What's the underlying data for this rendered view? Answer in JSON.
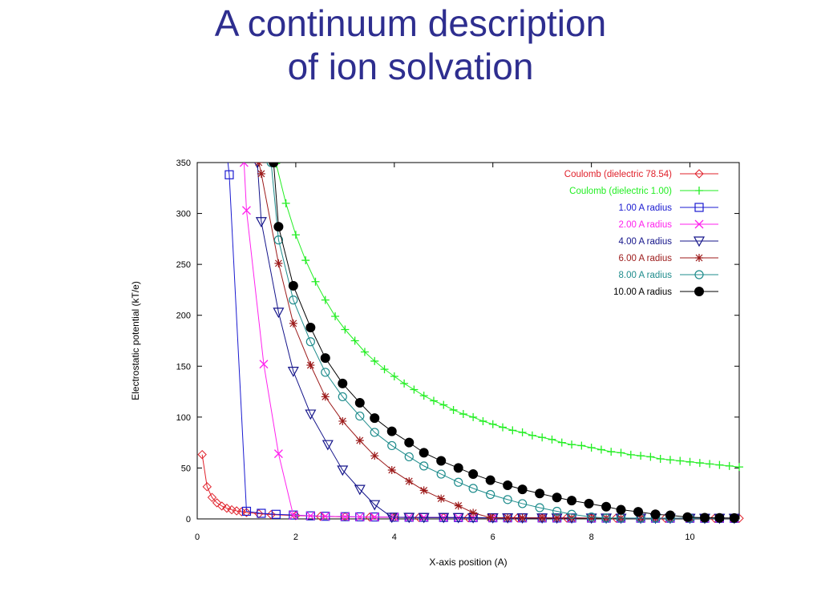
{
  "title": {
    "line1": "A continuum description",
    "line2": "of ion solvation"
  },
  "chart_data": {
    "type": "line",
    "xlabel": "X-axis position (A)",
    "ylabel": "Electrostatic potential (kT/e)",
    "xlim": [
      0,
      11
    ],
    "ylim": [
      0,
      350
    ],
    "xticks": [
      0,
      2,
      4,
      6,
      8,
      10
    ],
    "yticks": [
      0,
      50,
      100,
      150,
      200,
      250,
      300,
      350
    ],
    "legend_position": "top-right",
    "series": [
      {
        "name": "Coulomb (dielectric 78.54)",
        "color": "#e0202a",
        "marker": "diamond",
        "x": [
          0.1,
          0.2,
          0.3,
          0.4,
          0.5,
          0.6,
          0.7,
          0.8,
          0.9,
          1.0,
          1.25,
          1.5,
          2.0,
          2.5,
          3.0,
          3.5,
          4.0,
          4.5,
          5.0,
          5.5,
          6.0,
          6.5,
          7.0,
          7.5,
          8.0,
          8.5,
          9.0,
          9.5,
          10.0,
          10.5,
          11.0
        ],
        "y": [
          63.2,
          31.6,
          21.1,
          15.8,
          12.6,
          10.5,
          9.0,
          7.9,
          7.0,
          6.3,
          5.1,
          4.2,
          3.2,
          2.5,
          2.1,
          1.8,
          1.6,
          1.4,
          1.3,
          1.1,
          1.05,
          0.97,
          0.9,
          0.84,
          0.79,
          0.74,
          0.7,
          0.67,
          0.63,
          0.6,
          0.57
        ]
      },
      {
        "name": "Coulomb (dielectric 1.00)",
        "color": "#22ee22",
        "marker": "plus",
        "x": [
          1.4,
          1.6,
          1.8,
          2.0,
          2.2,
          2.4,
          2.6,
          2.8,
          3.0,
          3.2,
          3.4,
          3.6,
          3.8,
          4.0,
          4.2,
          4.4,
          4.6,
          4.8,
          5.0,
          5.2,
          5.4,
          5.6,
          5.8,
          6.0,
          6.2,
          6.4,
          6.6,
          6.8,
          7.0,
          7.2,
          7.4,
          7.6,
          7.8,
          8.0,
          8.2,
          8.4,
          8.6,
          8.8,
          9.0,
          9.2,
          9.4,
          9.6,
          9.8,
          10.0,
          10.2,
          10.4,
          10.6,
          10.8,
          11.0
        ],
        "y": [
          399,
          349,
          310,
          279,
          254,
          233,
          215,
          199,
          186,
          175,
          164,
          155,
          147,
          140,
          133,
          127,
          121,
          116,
          112,
          107,
          103,
          100,
          96,
          93,
          90,
          87,
          85,
          82,
          80,
          78,
          75,
          73,
          72,
          70,
          68,
          66,
          65,
          63,
          62,
          61,
          59,
          58,
          57,
          56,
          55,
          54,
          53,
          52,
          51
        ]
      },
      {
        "name": "1.00 A radius",
        "color": "#1a1ad0",
        "marker": "square",
        "x": [
          0.6,
          0.65,
          1.0,
          1.3,
          1.6,
          1.95,
          2.3,
          2.6,
          3.0,
          3.3,
          3.6,
          4.0,
          4.3,
          4.6,
          5.0,
          5.3,
          5.6,
          6.0,
          6.3,
          6.6,
          7.0,
          7.3,
          7.6,
          8.0,
          8.3,
          8.6,
          9.0,
          9.3,
          9.6,
          10.0,
          10.3,
          10.6,
          10.9
        ],
        "y": [
          360,
          338,
          7.5,
          5.5,
          4.5,
          3.8,
          3.0,
          2.6,
          2.2,
          2.0,
          1.9,
          1.7,
          1.6,
          1.5,
          1.4,
          1.3,
          1.2,
          1.1,
          1.05,
          1.0,
          0.95,
          0.9,
          0.85,
          0.8,
          0.78,
          0.75,
          0.72,
          0.7,
          0.68,
          0.65,
          0.63,
          0.6,
          0.58
        ]
      },
      {
        "name": "2.00 A radius",
        "color": "#ff22ee",
        "marker": "cross",
        "x": [
          0.95,
          1.0,
          1.35,
          1.65,
          1.95,
          2.3,
          2.6,
          3.0,
          3.3,
          3.6,
          4.0,
          4.3,
          4.6,
          5.0,
          5.3,
          5.6,
          6.0,
          6.3,
          6.6,
          7.0,
          7.3,
          7.6,
          8.0,
          8.3,
          8.6,
          9.0,
          9.3,
          9.6,
          10.0,
          10.3,
          10.6,
          10.9
        ],
        "y": [
          350,
          303,
          152,
          64,
          3.5,
          3.0,
          2.6,
          2.2,
          2.0,
          1.9,
          1.7,
          1.6,
          1.5,
          1.4,
          1.3,
          1.2,
          1.1,
          1.05,
          1.0,
          0.95,
          0.9,
          0.85,
          0.8,
          0.78,
          0.75,
          0.72,
          0.7,
          0.68,
          0.65,
          0.63,
          0.6,
          0.58
        ]
      },
      {
        "name": "4.00 A radius",
        "color": "#14148a",
        "marker": "triangle-down",
        "x": [
          1.22,
          1.3,
          1.65,
          1.95,
          2.3,
          2.65,
          2.95,
          3.3,
          3.6,
          3.95,
          4.3,
          4.6,
          5.0,
          5.3,
          5.6,
          6.0,
          6.3,
          6.6,
          7.0,
          7.3,
          7.6,
          8.0,
          8.3,
          8.6,
          9.0,
          9.3,
          9.6,
          10.0,
          10.3,
          10.6,
          10.9
        ],
        "y": [
          350,
          292,
          203,
          145,
          103,
          73,
          48,
          29,
          14,
          1.6,
          1.5,
          1.4,
          1.4,
          1.3,
          1.2,
          1.1,
          1.05,
          1.0,
          0.95,
          0.9,
          0.85,
          0.8,
          0.78,
          0.75,
          0.72,
          0.7,
          0.68,
          0.65,
          0.63,
          0.6,
          0.58
        ]
      },
      {
        "name": "6.00 A radius",
        "color": "#9c1a1a",
        "marker": "star",
        "x": [
          1.25,
          1.3,
          1.65,
          1.95,
          2.3,
          2.6,
          2.95,
          3.3,
          3.6,
          3.95,
          4.3,
          4.6,
          4.95,
          5.3,
          5.6,
          5.95,
          6.3,
          6.6,
          7.0,
          7.3,
          7.6,
          8.0,
          8.3,
          8.6,
          9.0,
          9.3,
          9.6,
          10.0,
          10.3,
          10.6,
          10.9
        ],
        "y": [
          350,
          339,
          251,
          192,
          151,
          120,
          96,
          77,
          62,
          48,
          37,
          28,
          20,
          13,
          6,
          1.2,
          1.1,
          1.05,
          1.0,
          0.95,
          0.9,
          0.85,
          0.8,
          0.78,
          0.75,
          0.72,
          0.7,
          0.68,
          0.65,
          0.63,
          0.6
        ]
      },
      {
        "name": "8.00 A radius",
        "color": "#1e8c8c",
        "marker": "circle",
        "x": [
          1.5,
          1.65,
          1.95,
          2.3,
          2.6,
          2.95,
          3.3,
          3.6,
          3.95,
          4.3,
          4.6,
          4.95,
          5.3,
          5.6,
          5.95,
          6.3,
          6.6,
          6.95,
          7.3,
          7.6,
          8.0,
          8.3,
          8.6,
          9.0,
          9.3,
          9.6,
          10.0,
          10.3,
          10.6,
          10.9
        ],
        "y": [
          350,
          274,
          215,
          174,
          144,
          120,
          101,
          85,
          72,
          61,
          52,
          44,
          36,
          30,
          24,
          19,
          15,
          11,
          7.5,
          4.5,
          1.9,
          0.9,
          0.85,
          0.8,
          0.78,
          0.75,
          0.72,
          0.7,
          0.68,
          0.65
        ]
      },
      {
        "name": "10.00 A radius",
        "color": "#000000",
        "marker": "filled-circle",
        "x": [
          1.55,
          1.65,
          1.95,
          2.3,
          2.6,
          2.95,
          3.3,
          3.6,
          3.95,
          4.3,
          4.6,
          4.95,
          5.3,
          5.6,
          5.95,
          6.3,
          6.6,
          6.95,
          7.3,
          7.6,
          7.95,
          8.3,
          8.6,
          8.95,
          9.3,
          9.6,
          9.95,
          10.3,
          10.6,
          10.9
        ],
        "y": [
          350,
          287,
          229,
          188,
          158,
          133,
          114,
          99,
          86,
          75,
          65,
          57,
          50,
          44,
          38,
          33,
          29,
          25,
          21,
          18,
          15,
          12,
          9,
          7,
          4.5,
          3.5,
          1.8,
          1.2,
          1.0,
          0.9
        ]
      }
    ]
  }
}
